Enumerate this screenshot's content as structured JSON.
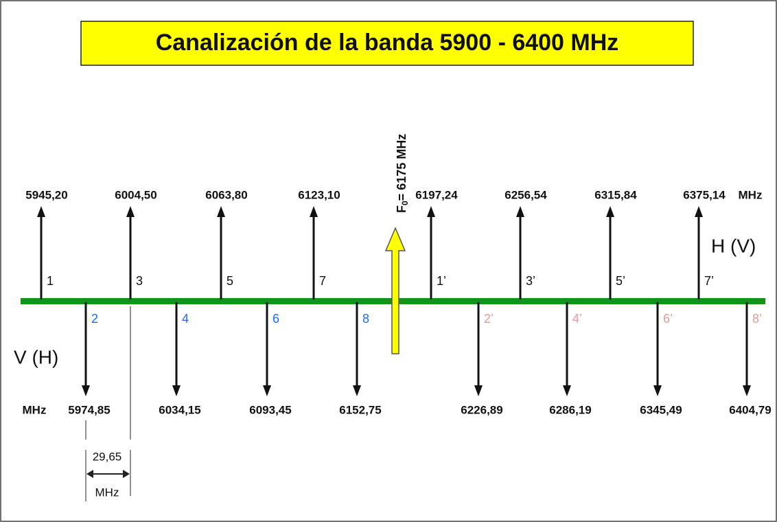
{
  "title": "Canalización de la banda 5900 - 6400 MHz",
  "center": {
    "symbol": "F",
    "subscript": "0",
    "text": "= 6175 MHz"
  },
  "upper": {
    "polarization": "H (V)",
    "unit": "MHz",
    "channels": [
      {
        "number": "1",
        "frequency": "5945,20"
      },
      {
        "number": "3",
        "frequency": "6004,50"
      },
      {
        "number": "5",
        "frequency": "6063,80"
      },
      {
        "number": "7",
        "frequency": "6123,10"
      },
      {
        "number": "1’",
        "frequency": "6197,24"
      },
      {
        "number": "3’",
        "frequency": "6256,54"
      },
      {
        "number": "5’",
        "frequency": "6315,84"
      },
      {
        "number": "7’",
        "frequency": "6375,14"
      }
    ]
  },
  "lower": {
    "polarization": "V (H)",
    "unit": "MHz",
    "channels": [
      {
        "number": "2",
        "frequency": "5974,85"
      },
      {
        "number": "4",
        "frequency": "6034,15"
      },
      {
        "number": "6",
        "frequency": "6093,45"
      },
      {
        "number": "8",
        "frequency": "6152,75"
      },
      {
        "number": "2’",
        "frequency": "6226,89"
      },
      {
        "number": "4’",
        "frequency": "6286,19"
      },
      {
        "number": "6’",
        "frequency": "6345,49"
      },
      {
        "number": "8’",
        "frequency": "6404,79"
      }
    ]
  },
  "spacing": {
    "value": "29,65",
    "unit": "MHz"
  }
}
